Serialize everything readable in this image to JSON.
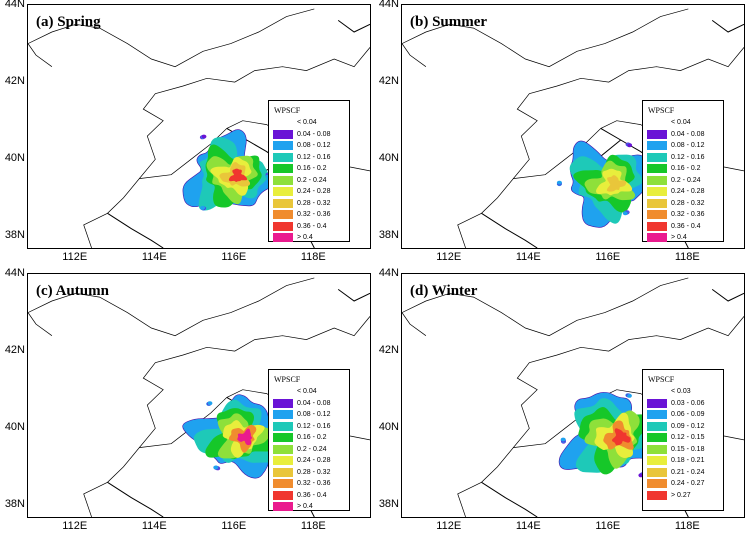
{
  "legend_title": "WPSCF",
  "x_ticks": [
    "112E",
    "114E",
    "116E",
    "118E"
  ],
  "y_ticks": [
    "44N",
    "42N",
    "40N",
    "38N"
  ],
  "colors": [
    "#ffffff",
    "#6a13d6",
    "#1fa2ef",
    "#1ec9b8",
    "#16c729",
    "#8ee03a",
    "#e8ee3c",
    "#e9c63a",
    "#f08c2e",
    "#f0362f",
    "#ea1a8e"
  ],
  "legend_labels_standard": [
    "< 0.04",
    "0.04 - 0.08",
    "0.08 - 0.12",
    "0.12 - 0.16",
    "0.16 - 0.2",
    "0.2 - 0.24",
    "0.24 - 0.28",
    "0.28 - 0.32",
    "0.32 - 0.36",
    "0.36 - 0.4",
    "> 0.4"
  ],
  "legend_labels_winter": [
    "< 0.03",
    "0.03 - 0.06",
    "0.06 - 0.09",
    "0.09 - 0.12",
    "0.12 - 0.15",
    "0.15 - 0.18",
    "0.18 - 0.21",
    "0.21 - 0.24",
    "0.24 - 0.27",
    "> 0.27"
  ],
  "panels": [
    {
      "id": "spring",
      "title": "(a) Spring",
      "legend": "standard",
      "levels": [
        2,
        3,
        4,
        5,
        6,
        7,
        9
      ],
      "center": [
        115.8,
        39.6
      ],
      "spread": [
        0.9,
        0.8
      ]
    },
    {
      "id": "summer",
      "title": "(b) Summer",
      "legend": "standard",
      "levels": [
        2,
        3,
        4,
        5,
        6,
        7
      ],
      "center": [
        115.9,
        39.4
      ],
      "spread": [
        0.9,
        0.8
      ]
    },
    {
      "id": "autumn",
      "title": "(c) Autumn",
      "legend": "standard",
      "levels": [
        2,
        3,
        4,
        5,
        6,
        8,
        10
      ],
      "center": [
        116.0,
        39.8
      ],
      "spread": [
        0.9,
        0.8
      ]
    },
    {
      "id": "winter",
      "title": "(d) Winter",
      "legend": "winter",
      "levels": [
        2,
        3,
        4,
        5,
        6,
        8,
        9
      ],
      "center": [
        116.0,
        39.8
      ],
      "spread": [
        1.0,
        0.9
      ]
    }
  ]
}
